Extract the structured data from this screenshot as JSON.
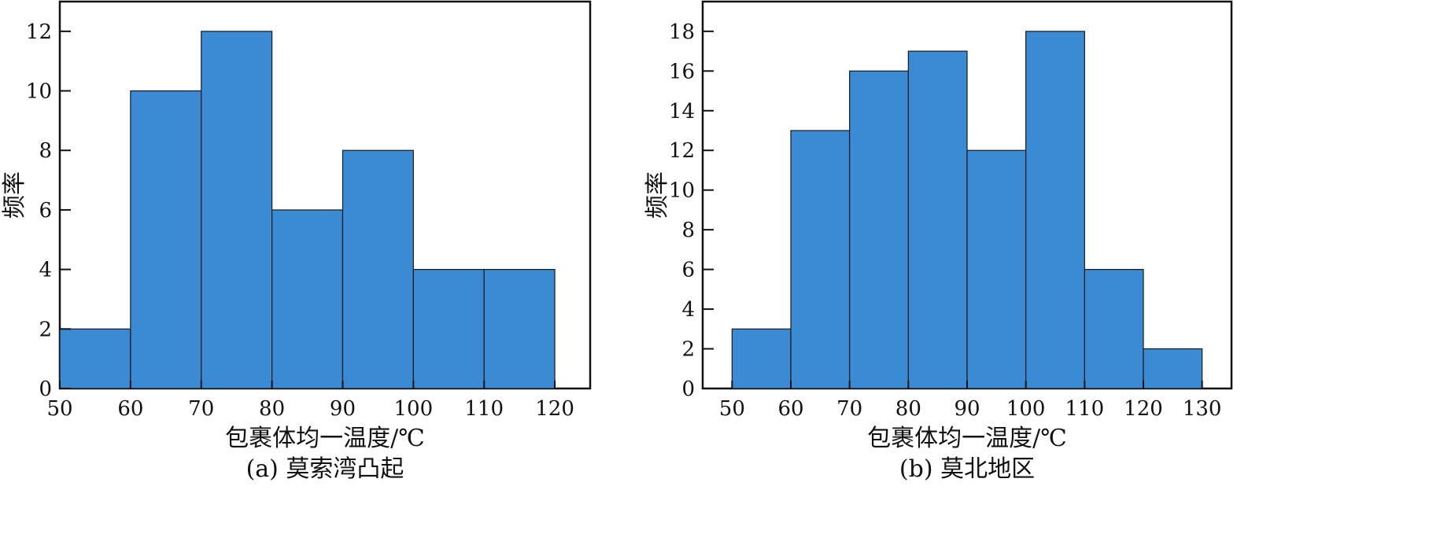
{
  "chart_data": [
    {
      "type": "bar",
      "caption": "(a) 莫索湾凸起",
      "xlabel": "包裹体均一温度/℃",
      "ylabel": "频率",
      "bins": [
        [
          50,
          60
        ],
        [
          60,
          70
        ],
        [
          70,
          80
        ],
        [
          80,
          90
        ],
        [
          90,
          100
        ],
        [
          100,
          110
        ],
        [
          110,
          120
        ]
      ],
      "values": [
        2,
        10,
        12,
        6,
        8,
        4,
        4
      ],
      "xlim": [
        50,
        125
      ],
      "ylim": [
        0,
        13
      ],
      "xticks": [
        50,
        60,
        70,
        80,
        90,
        100,
        110,
        120
      ],
      "yticks": [
        0,
        2,
        4,
        6,
        8,
        10,
        12
      ],
      "bar_color": "#3a8ad4",
      "grid": false
    },
    {
      "type": "bar",
      "caption": "(b) 莫北地区",
      "xlabel": "包裹体均一温度/℃",
      "ylabel": "频率",
      "bins": [
        [
          50,
          60
        ],
        [
          60,
          70
        ],
        [
          70,
          80
        ],
        [
          80,
          90
        ],
        [
          90,
          100
        ],
        [
          100,
          110
        ],
        [
          110,
          120
        ],
        [
          120,
          130
        ]
      ],
      "values": [
        3,
        13,
        16,
        17,
        12,
        18,
        6,
        2
      ],
      "xlim": [
        45,
        135
      ],
      "ylim": [
        0,
        19.5
      ],
      "xticks": [
        50,
        60,
        70,
        80,
        90,
        100,
        110,
        120,
        130
      ],
      "yticks": [
        0,
        2,
        4,
        6,
        8,
        10,
        12,
        14,
        16,
        18
      ],
      "bar_color": "#3a8ad4",
      "grid": false
    }
  ]
}
